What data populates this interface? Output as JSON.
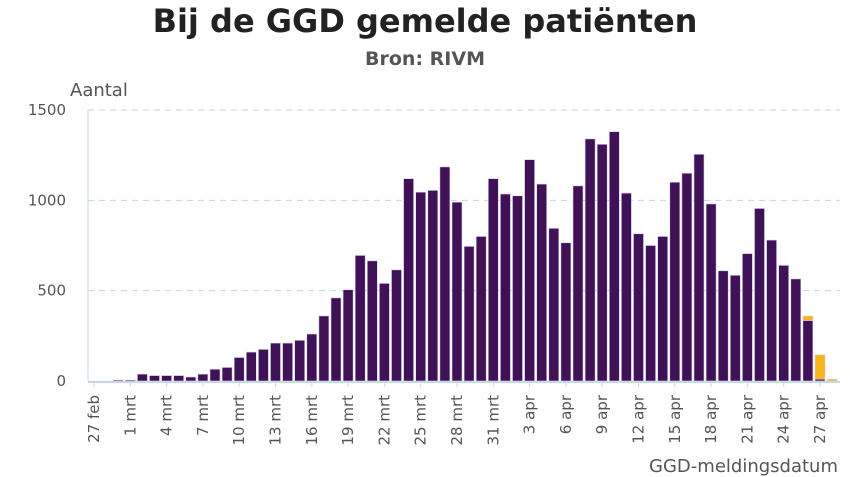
{
  "chart_data": {
    "type": "bar",
    "stacked": true,
    "title": "Bij de GGD gemelde patiënten",
    "subtitle": "Bron: RIVM",
    "ylabel": "Aantal",
    "xlabel": "GGD-meldingsdatum",
    "ylim": [
      0,
      1500
    ],
    "yticks": [
      0,
      500,
      1000,
      1500
    ],
    "grid": true,
    "xtick_labels": [
      "27 feb",
      "1 mrt",
      "4 mrt",
      "7 mrt",
      "10 mrt",
      "13 mrt",
      "16 mrt",
      "19 mrt",
      "22 mrt",
      "25 mrt",
      "28 mrt",
      "31 mrt",
      "3 apr",
      "6 apr",
      "9 apr",
      "12 apr",
      "15 apr",
      "18 apr",
      "21 apr",
      "24 apr",
      "27 apr"
    ],
    "categories": [
      "27 feb",
      "28 feb",
      "29 feb",
      "1 mrt",
      "2 mrt",
      "3 mrt",
      "4 mrt",
      "5 mrt",
      "6 mrt",
      "7 mrt",
      "8 mrt",
      "9 mrt",
      "10 mrt",
      "11 mrt",
      "12 mrt",
      "13 mrt",
      "14 mrt",
      "15 mrt",
      "16 mrt",
      "17 mrt",
      "18 mrt",
      "19 mrt",
      "20 mrt",
      "21 mrt",
      "22 mrt",
      "23 mrt",
      "24 mrt",
      "25 mrt",
      "26 mrt",
      "27 mrt",
      "28 mrt",
      "29 mrt",
      "30 mrt",
      "31 mrt",
      "1 apr",
      "2 apr",
      "3 apr",
      "4 apr",
      "5 apr",
      "6 apr",
      "7 apr",
      "8 apr",
      "9 apr",
      "10 apr",
      "11 apr",
      "12 apr",
      "13 apr",
      "14 apr",
      "15 apr",
      "16 apr",
      "17 apr",
      "18 apr",
      "19 apr",
      "20 apr",
      "21 apr",
      "22 apr",
      "23 apr",
      "24 apr",
      "25 apr",
      "26 apr",
      "27 apr",
      "28 apr"
    ],
    "series": [
      {
        "color": "#3f1258",
        "values": [
          0,
          0,
          5,
          5,
          38,
          30,
          30,
          30,
          22,
          38,
          65,
          75,
          130,
          160,
          175,
          210,
          210,
          225,
          260,
          360,
          460,
          505,
          695,
          665,
          540,
          615,
          1120,
          1045,
          1055,
          1185,
          990,
          745,
          800,
          1120,
          1035,
          1025,
          1225,
          1090,
          845,
          765,
          1080,
          1340,
          1310,
          1380,
          1040,
          815,
          750,
          800,
          1100,
          1150,
          1255,
          980,
          610,
          585,
          705,
          955,
          780,
          640,
          565,
          335,
          10,
          0
        ]
      },
      {
        "color": "#f7b51a",
        "values": [
          0,
          0,
          0,
          0,
          0,
          0,
          0,
          0,
          0,
          0,
          0,
          0,
          0,
          0,
          0,
          0,
          0,
          0,
          0,
          0,
          0,
          0,
          0,
          0,
          0,
          0,
          0,
          0,
          0,
          0,
          0,
          0,
          0,
          0,
          0,
          0,
          0,
          0,
          0,
          0,
          0,
          0,
          0,
          0,
          0,
          0,
          0,
          0,
          0,
          0,
          0,
          0,
          0,
          0,
          0,
          0,
          0,
          0,
          0,
          25,
          135,
          10
        ]
      }
    ]
  }
}
